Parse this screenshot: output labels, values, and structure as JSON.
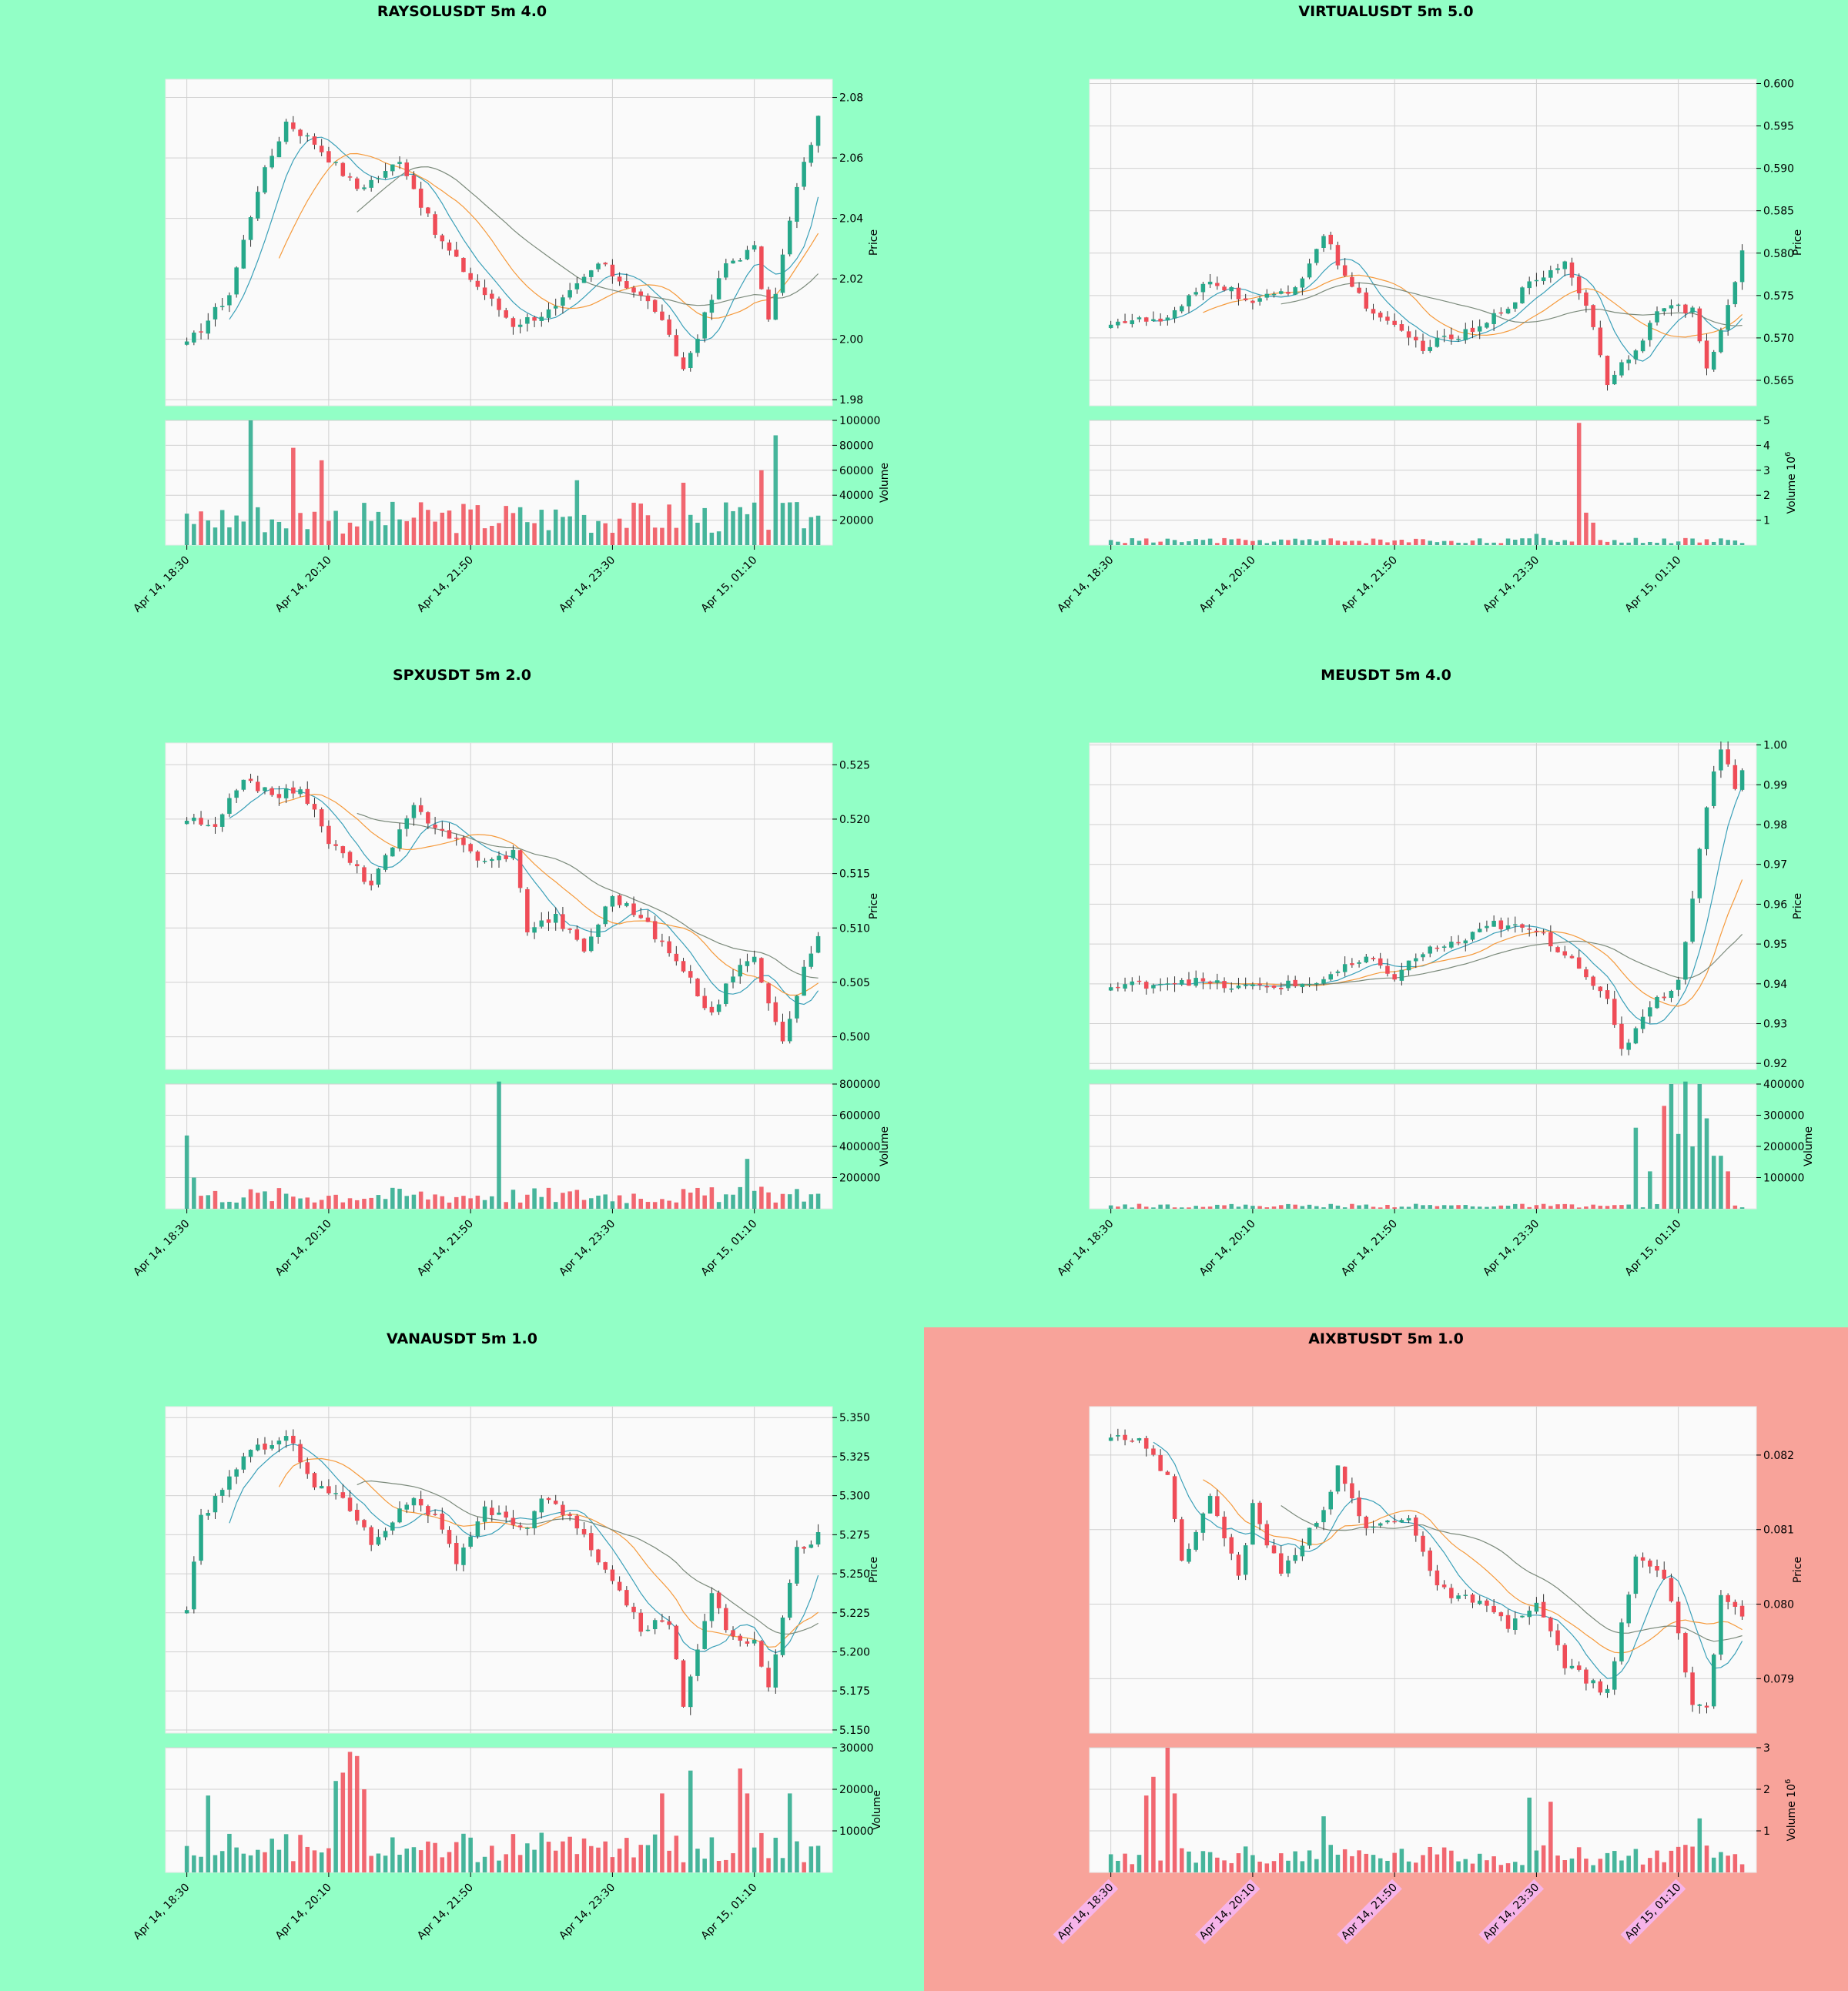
{
  "colors": {
    "background_default": "#92ffc6",
    "background_highlight": "#f8a39a",
    "plot_face": "#fafafa",
    "up": "#26a88a",
    "down": "#ef4c57",
    "ma_fast": "#3aa0b8",
    "ma_mid": "#f59a3c",
    "ma_slow": "#7b8a7b",
    "ma_slow_alt": "#5c9a4a"
  },
  "x_ticks": [
    "Apr 14, 18:30",
    "Apr 14, 20:10",
    "Apr 14, 21:50",
    "Apr 14, 23:30",
    "Apr 15, 01:10"
  ],
  "price_axis_label": "Price",
  "chart_data": [
    {
      "type": "candlestick",
      "title": "RAYSOLUSDT 5m 4.0",
      "highlight": false,
      "ylabel": "Price",
      "vol_label": "Volume",
      "vol_exp": "",
      "ylim": [
        1.978,
        2.086
      ],
      "yticks": [
        "1.98",
        "2.00",
        "2.02",
        "2.04",
        "2.06",
        "2.08"
      ],
      "vol_ylim": [
        0,
        100000
      ],
      "vol_ticks": [
        "20000",
        "40000",
        "60000",
        "80000",
        "100000"
      ],
      "x_ticks": [
        "Apr 14, 18:30",
        "Apr 14, 20:10",
        "Apr 14, 21:50",
        "Apr 14, 23:30",
        "Apr 15, 01:10"
      ],
      "n_candles": 90,
      "anchors": [
        [
          0,
          1.998
        ],
        [
          6,
          2.015
        ],
        [
          10,
          2.05
        ],
        [
          14,
          2.072
        ],
        [
          18,
          2.065
        ],
        [
          24,
          2.05
        ],
        [
          28,
          2.055
        ],
        [
          30,
          2.06
        ],
        [
          35,
          2.035
        ],
        [
          40,
          2.02
        ],
        [
          46,
          2.005
        ],
        [
          52,
          2.01
        ],
        [
          58,
          2.025
        ],
        [
          62,
          2.018
        ],
        [
          66,
          2.01
        ],
        [
          70,
          1.99
        ],
        [
          76,
          2.025
        ],
        [
          80,
          2.03
        ],
        [
          82,
          2.005
        ],
        [
          86,
          2.05
        ],
        [
          89,
          2.073
        ]
      ],
      "vol_base": 22000,
      "vol_spikes": [
        [
          9,
          100000
        ],
        [
          15,
          78000
        ],
        [
          19,
          68000
        ],
        [
          83,
          88000
        ],
        [
          81,
          60000
        ],
        [
          70,
          50000
        ],
        [
          55,
          52000
        ]
      ]
    },
    {
      "type": "candlestick",
      "title": "VIRTUALUSDT 5m 5.0",
      "highlight": false,
      "ylabel": "Price",
      "vol_label": "Volume",
      "vol_exp": "1e6",
      "ylim": [
        0.562,
        0.6005
      ],
      "yticks": [
        "0.565",
        "0.570",
        "0.575",
        "0.580",
        "0.585",
        "0.590",
        "0.595",
        "0.600"
      ],
      "vol_ylim": [
        0,
        5
      ],
      "vol_ticks": [
        "1",
        "2",
        "3",
        "4",
        "5"
      ],
      "x_ticks": [
        "Apr 14, 18:30",
        "Apr 14, 20:10",
        "Apr 14, 21:50",
        "Apr 14, 23:30",
        "Apr 15, 01:10"
      ],
      "n_candles": 90,
      "anchors": [
        [
          0,
          0.572
        ],
        [
          8,
          0.572
        ],
        [
          14,
          0.577
        ],
        [
          20,
          0.574
        ],
        [
          26,
          0.576
        ],
        [
          30,
          0.582
        ],
        [
          34,
          0.576
        ],
        [
          38,
          0.572
        ],
        [
          44,
          0.569
        ],
        [
          52,
          0.571
        ],
        [
          60,
          0.577
        ],
        [
          64,
          0.579
        ],
        [
          67,
          0.574
        ],
        [
          70,
          0.565
        ],
        [
          74,
          0.569
        ],
        [
          78,
          0.574
        ],
        [
          82,
          0.573
        ],
        [
          84,
          0.566
        ],
        [
          86,
          0.571
        ],
        [
          89,
          0.58
        ]
      ],
      "vol_base": 0.18,
      "vol_spikes": [
        [
          66,
          4.9
        ],
        [
          67,
          1.3
        ],
        [
          68,
          0.9
        ],
        [
          60,
          0.45
        ]
      ]
    },
    {
      "type": "candlestick",
      "title": "SPXUSDT 5m 2.0",
      "highlight": false,
      "ylabel": "Price",
      "vol_label": "Volume",
      "vol_exp": "",
      "ylim": [
        0.497,
        0.527
      ],
      "yticks": [
        "0.500",
        "0.505",
        "0.510",
        "0.515",
        "0.520",
        "0.525"
      ],
      "vol_ylim": [
        0,
        800000
      ],
      "vol_ticks": [
        "200000",
        "400000",
        "600000",
        "800000"
      ],
      "x_ticks": [
        "Apr 14, 18:30",
        "Apr 14, 20:10",
        "Apr 14, 21:50",
        "Apr 14, 23:30",
        "Apr 15, 01:10"
      ],
      "n_candles": 90,
      "anchors": [
        [
          0,
          0.52
        ],
        [
          4,
          0.519
        ],
        [
          8,
          0.524
        ],
        [
          12,
          0.522
        ],
        [
          16,
          0.523
        ],
        [
          20,
          0.518
        ],
        [
          26,
          0.514
        ],
        [
          32,
          0.521
        ],
        [
          36,
          0.519
        ],
        [
          42,
          0.516
        ],
        [
          46,
          0.517
        ],
        [
          48,
          0.51
        ],
        [
          52,
          0.511
        ],
        [
          56,
          0.508
        ],
        [
          60,
          0.513
        ],
        [
          64,
          0.511
        ],
        [
          70,
          0.506
        ],
        [
          74,
          0.502
        ],
        [
          78,
          0.507
        ],
        [
          80,
          0.507
        ],
        [
          84,
          0.5
        ],
        [
          88,
          0.508
        ],
        [
          89,
          0.509
        ]
      ],
      "vol_base": 90000,
      "vol_spikes": [
        [
          0,
          470000
        ],
        [
          44,
          830000
        ],
        [
          79,
          320000
        ],
        [
          1,
          200000
        ]
      ]
    },
    {
      "type": "candlestick",
      "title": "MEUSDT 5m 4.0",
      "highlight": false,
      "ylabel": "Price",
      "vol_label": "Volume",
      "vol_exp": "",
      "ylim": [
        0.9185,
        1.0005
      ],
      "yticks": [
        "0.92",
        "0.93",
        "0.94",
        "0.95",
        "0.96",
        "0.97",
        "0.98",
        "0.99",
        "1.00"
      ],
      "vol_ylim": [
        0,
        400000
      ],
      "vol_ticks": [
        "100000",
        "200000",
        "300000",
        "400000"
      ],
      "x_ticks": [
        "Apr 14, 18:30",
        "Apr 14, 20:10",
        "Apr 14, 21:50",
        "Apr 14, 23:30",
        "Apr 15, 01:10"
      ],
      "n_candles": 90,
      "anchors": [
        [
          0,
          0.939
        ],
        [
          10,
          0.941
        ],
        [
          18,
          0.939
        ],
        [
          28,
          0.94
        ],
        [
          36,
          0.946
        ],
        [
          40,
          0.942
        ],
        [
          44,
          0.948
        ],
        [
          50,
          0.951
        ],
        [
          54,
          0.955
        ],
        [
          60,
          0.953
        ],
        [
          66,
          0.945
        ],
        [
          70,
          0.935
        ],
        [
          72,
          0.923
        ],
        [
          76,
          0.935
        ],
        [
          80,
          0.94
        ],
        [
          84,
          0.985
        ],
        [
          86,
          1.0
        ],
        [
          88,
          0.99
        ],
        [
          89,
          0.993
        ]
      ],
      "vol_base": 10000,
      "vol_spikes": [
        [
          74,
          260000
        ],
        [
          78,
          330000
        ],
        [
          79,
          400000
        ],
        [
          80,
          240000
        ],
        [
          81,
          410000
        ],
        [
          82,
          200000
        ],
        [
          83,
          400000
        ],
        [
          84,
          290000
        ],
        [
          85,
          170000
        ],
        [
          86,
          170000
        ],
        [
          87,
          120000
        ],
        [
          76,
          120000
        ]
      ]
    },
    {
      "type": "candlestick",
      "title": "VANAUSDT 5m 1.0",
      "highlight": false,
      "ylabel": "Price",
      "vol_label": "Volume",
      "vol_exp": "",
      "ylim": [
        5.148,
        5.357
      ],
      "yticks": [
        "5.150",
        "5.175",
        "5.200",
        "5.225",
        "5.250",
        "5.275",
        "5.300",
        "5.325",
        "5.350"
      ],
      "vol_ylim": [
        0,
        30000
      ],
      "vol_ticks": [
        "10000",
        "20000",
        "30000"
      ],
      "x_ticks": [
        "Apr 14, 18:30",
        "Apr 14, 20:10",
        "Apr 14, 21:50",
        "Apr 14, 23:30",
        "Apr 15, 01:10"
      ],
      "n_candles": 90,
      "anchors": [
        [
          0,
          5.225
        ],
        [
          2,
          5.285
        ],
        [
          8,
          5.325
        ],
        [
          14,
          5.34
        ],
        [
          18,
          5.305
        ],
        [
          22,
          5.3
        ],
        [
          26,
          5.27
        ],
        [
          32,
          5.3
        ],
        [
          36,
          5.28
        ],
        [
          38,
          5.255
        ],
        [
          42,
          5.29
        ],
        [
          48,
          5.28
        ],
        [
          50,
          5.3
        ],
        [
          54,
          5.285
        ],
        [
          58,
          5.26
        ],
        [
          64,
          5.215
        ],
        [
          68,
          5.22
        ],
        [
          70,
          5.165
        ],
        [
          74,
          5.24
        ],
        [
          76,
          5.215
        ],
        [
          80,
          5.205
        ],
        [
          82,
          5.18
        ],
        [
          86,
          5.265
        ],
        [
          89,
          5.275
        ]
      ],
      "vol_base": 6000,
      "vol_spikes": [
        [
          21,
          22000
        ],
        [
          22,
          24000
        ],
        [
          23,
          29000
        ],
        [
          24,
          28000
        ],
        [
          25,
          20000
        ],
        [
          67,
          19000
        ],
        [
          71,
          24500
        ],
        [
          78,
          25000
        ],
        [
          79,
          19000
        ],
        [
          85,
          19000
        ],
        [
          3,
          18500
        ]
      ]
    },
    {
      "type": "candlestick",
      "title": "AIXBTUSDT 5m 1.0",
      "highlight": true,
      "ylabel": "Price",
      "vol_label": "Volume",
      "vol_exp": "1e6",
      "ylim": [
        0.07827,
        0.08265
      ],
      "yticks": [
        "0.079",
        "0.080",
        "0.081",
        "0.082"
      ],
      "vol_ylim": [
        0,
        3
      ],
      "vol_ticks": [
        "1",
        "2",
        "3"
      ],
      "x_ticks": [
        "Apr 14, 18:30",
        "Apr 14, 20:10",
        "Apr 14, 21:50",
        "Apr 14, 23:30",
        "Apr 15, 01:10"
      ],
      "n_candles": 90,
      "anchors": [
        [
          0,
          0.0823
        ],
        [
          4,
          0.0822
        ],
        [
          8,
          0.0817
        ],
        [
          10,
          0.0806
        ],
        [
          14,
          0.0814
        ],
        [
          18,
          0.0804
        ],
        [
          20,
          0.0813
        ],
        [
          24,
          0.0804
        ],
        [
          30,
          0.0813
        ],
        [
          32,
          0.0818
        ],
        [
          36,
          0.081
        ],
        [
          42,
          0.0812
        ],
        [
          46,
          0.0802
        ],
        [
          52,
          0.08
        ],
        [
          56,
          0.0797
        ],
        [
          60,
          0.08
        ],
        [
          64,
          0.0792
        ],
        [
          70,
          0.0788
        ],
        [
          74,
          0.0806
        ],
        [
          78,
          0.0804
        ],
        [
          82,
          0.0787
        ],
        [
          84,
          0.0786
        ],
        [
          86,
          0.0801
        ],
        [
          89,
          0.0798
        ]
      ],
      "vol_base": 0.42,
      "vol_spikes": [
        [
          6,
          2.3
        ],
        [
          8,
          3.0
        ],
        [
          9,
          1.9
        ],
        [
          5,
          1.85
        ],
        [
          59,
          1.8
        ],
        [
          62,
          1.7
        ],
        [
          83,
          1.3
        ],
        [
          30,
          1.35
        ]
      ]
    }
  ]
}
